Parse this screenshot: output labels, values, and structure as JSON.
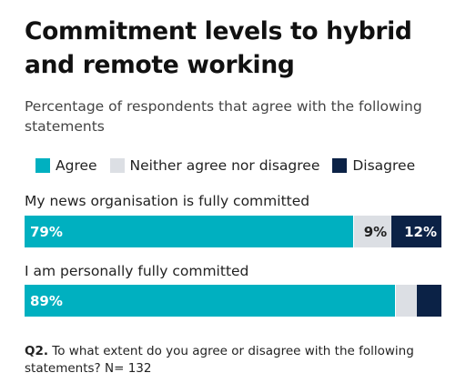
{
  "chart_data": {
    "type": "bar",
    "orientation": "horizontal",
    "stacked": true,
    "title": "Commitment levels to hybrid and remote working",
    "subtitle": "Percentage of respondents that agree with the following statements",
    "categories": [
      "My news organisation is fully committed",
      "I am personally fully committed"
    ],
    "series": [
      {
        "name": "Agree",
        "color": "#00b0c0",
        "values": [
          79,
          89
        ],
        "labels": [
          "79%",
          "89%"
        ]
      },
      {
        "name": "Neither agree nor disagree",
        "color": "#dcdfe4",
        "values": [
          9,
          5
        ],
        "labels": [
          "9%",
          ""
        ]
      },
      {
        "name": "Disagree",
        "color": "#0b2246",
        "values": [
          12,
          6
        ],
        "labels": [
          "12%",
          ""
        ]
      }
    ],
    "xlim": [
      0,
      100
    ],
    "legend_position": "top",
    "grid": false,
    "footnote_label": "Q2.",
    "footnote": "To what extent do you agree or disagree with the following statements? N= 132"
  }
}
